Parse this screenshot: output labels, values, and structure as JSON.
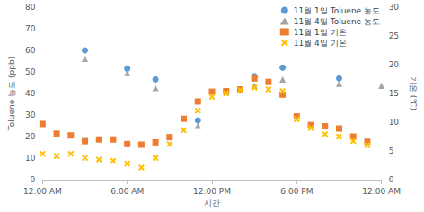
{
  "chart_data": {
    "type": "scatter",
    "x_label": "시간",
    "y_label": "Toluene 농도 (ppb)",
    "y2_label": "기온 (℃)",
    "x": [
      0,
      1,
      2,
      3,
      4,
      5,
      6,
      7,
      8,
      9,
      10,
      11,
      12,
      13,
      14,
      15,
      16,
      17,
      18,
      19,
      20,
      21,
      22,
      23,
      24
    ],
    "xlim": [
      0,
      24
    ],
    "xticks": [
      {
        "value": 0,
        "label": "12:00 AM"
      },
      {
        "value": 6,
        "label": "6:00 AM"
      },
      {
        "value": 12,
        "label": "12:00 PM"
      },
      {
        "value": 18,
        "label": "6:00 PM"
      },
      {
        "value": 24,
        "label": "12:00 AM"
      }
    ],
    "ylim": [
      0,
      80
    ],
    "yticks": [
      0,
      10,
      20,
      30,
      40,
      50,
      60,
      70,
      80
    ],
    "y2lim": [
      0,
      30
    ],
    "y2ticks": [
      0,
      5,
      10,
      15,
      20,
      25,
      30
    ],
    "grid": false,
    "legend": "top-right",
    "series": [
      {
        "name": "11월 1일 Toluene 농도",
        "color": "#5b9bd5",
        "marker": "circle",
        "values": [
          null,
          null,
          null,
          60,
          null,
          null,
          51.5,
          null,
          46.5,
          null,
          null,
          27.5,
          null,
          null,
          null,
          48,
          null,
          52,
          null,
          null,
          null,
          47,
          null,
          null,
          null
        ]
      },
      {
        "name": "11월 4일 Toluene 농도",
        "color": "#a5a5a5",
        "marker": "triangle",
        "values": [
          null,
          null,
          null,
          56,
          null,
          null,
          49.5,
          null,
          42.5,
          null,
          null,
          25,
          null,
          null,
          null,
          43.5,
          null,
          46.5,
          null,
          null,
          null,
          44.5,
          null,
          null,
          43.5
        ]
      },
      {
        "name": "11월 1일 기온",
        "color": "#ed7d31",
        "marker": "square",
        "axis": "y2",
        "values": [
          9.7,
          8.0,
          7.7,
          6.7,
          7.0,
          7.0,
          6.2,
          6.1,
          6.5,
          7.4,
          10.6,
          13.6,
          15.3,
          15.4,
          15.7,
          17.6,
          17.0,
          14.8,
          11.0,
          9.5,
          9.3,
          8.9,
          7.5,
          6.6,
          null
        ]
      },
      {
        "name": "11월 4일 기온",
        "color": "#ffc000",
        "marker": "x",
        "axis": "y2",
        "values": [
          4.5,
          4.1,
          4.5,
          3.8,
          3.5,
          3.3,
          2.8,
          2.1,
          3.8,
          6.2,
          8.6,
          12.0,
          14.4,
          15.0,
          15.6,
          16.0,
          15.7,
          15.4,
          10.5,
          9.0,
          7.9,
          7.5,
          6.7,
          6.0,
          null
        ]
      }
    ]
  }
}
